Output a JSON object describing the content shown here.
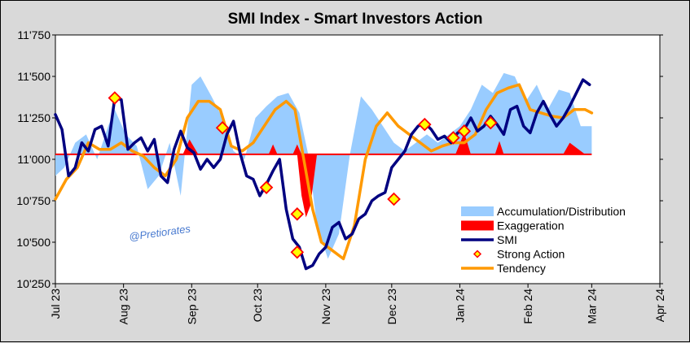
{
  "chart_data": {
    "type": "line",
    "title": "SMI Index - Smart Investors Action",
    "watermark": "@Pretiorates",
    "xlabel": "",
    "ylabel": "",
    "ylim": [
      10250,
      11750
    ],
    "y_ticks": [
      10250,
      10500,
      10750,
      11000,
      11250,
      11500,
      11750
    ],
    "y_tick_labels": [
      "10'250",
      "10'500",
      "10'750",
      "11'000",
      "11'250",
      "11'500",
      "11'750"
    ],
    "xlim": [
      "2023-07-01",
      "2024-04-01"
    ],
    "x_ticks": [
      "2023-07-01",
      "2023-08-01",
      "2023-09-01",
      "2023-10-01",
      "2023-11-01",
      "2023-12-01",
      "2024-01-01",
      "2024-02-01",
      "2024-03-01",
      "2024-04-01"
    ],
    "x_tick_labels": [
      "Jul 23",
      "Aug 23",
      "Sep 23",
      "Oct 23",
      "Nov 23",
      "Dec 23",
      "Jan 24",
      "Feb 24",
      "Mar 24",
      "Apr 24"
    ],
    "baseline": 11030,
    "legend_position": "bottom-right",
    "grid": false,
    "colors": {
      "accumulation": "#99ccff",
      "exaggeration": "#ff0000",
      "smi": "#000080",
      "strong_action_fill": "#ffff00",
      "strong_action_edge": "#ff0000",
      "tendency": "#ff9900",
      "baseline": "#ff0000",
      "plot_bg": "#ffffff",
      "page_bg": "#d9d9d9"
    },
    "series": [
      {
        "name": "Accumulation/Distribution",
        "kind": "area",
        "x": [
          "2023-07-01",
          "2023-07-05",
          "2023-07-10",
          "2023-07-15",
          "2023-07-20",
          "2023-07-25",
          "2023-07-28",
          "2023-08-02",
          "2023-08-07",
          "2023-08-12",
          "2023-08-17",
          "2023-08-22",
          "2023-08-27",
          "2023-09-01",
          "2023-09-05",
          "2023-09-10",
          "2023-09-15",
          "2023-09-20",
          "2023-09-25",
          "2023-09-30",
          "2023-10-05",
          "2023-10-10",
          "2023-10-15",
          "2023-10-20",
          "2023-10-24",
          "2023-10-28",
          "2023-11-02",
          "2023-11-07",
          "2023-11-12",
          "2023-11-17",
          "2023-11-22",
          "2023-11-27",
          "2023-12-02",
          "2023-12-07",
          "2023-12-12",
          "2023-12-17",
          "2023-12-22",
          "2023-12-27",
          "2024-01-01",
          "2024-01-06",
          "2024-01-11",
          "2024-01-16",
          "2024-01-21",
          "2024-01-26",
          "2024-01-31",
          "2024-02-05",
          "2024-02-10",
          "2024-02-15",
          "2024-02-20",
          "2024-02-25",
          "2024-03-01"
        ],
        "values": [
          10900,
          10950,
          11100,
          11150,
          11000,
          11200,
          11300,
          11150,
          11080,
          10820,
          10900,
          11100,
          10780,
          11450,
          11500,
          11380,
          11250,
          11050,
          11000,
          11250,
          11320,
          11380,
          11400,
          11280,
          11030,
          10600,
          10400,
          10550,
          11030,
          11380,
          11300,
          11200,
          11100,
          11050,
          11100,
          11150,
          11100,
          11150,
          11200,
          11300,
          11450,
          11400,
          11520,
          11500,
          11350,
          11450,
          11300,
          11420,
          11400,
          11200,
          11200
        ]
      },
      {
        "name": "Exaggeration",
        "kind": "area",
        "segments": [
          {
            "x": [
              "2023-08-28",
              "2023-08-31",
              "2023-09-04"
            ],
            "values": [
              11030,
              11120,
              11030
            ]
          },
          {
            "x": [
              "2023-10-06",
              "2023-10-08",
              "2023-10-10"
            ],
            "values": [
              11030,
              11090,
              11030
            ]
          },
          {
            "x": [
              "2023-10-17",
              "2023-10-19",
              "2023-10-21"
            ],
            "values": [
              11030,
              11090,
              11030
            ]
          },
          {
            "x": [
              "2023-10-19",
              "2023-10-21",
              "2023-10-23",
              "2023-10-25",
              "2023-10-28"
            ],
            "values": [
              11030,
              10780,
              10650,
              10720,
              11030
            ]
          },
          {
            "x": [
              "2023-12-30",
              "2024-01-03",
              "2024-01-06"
            ],
            "values": [
              11030,
              11160,
              11030
            ]
          },
          {
            "x": [
              "2024-01-17",
              "2024-01-19",
              "2024-01-21"
            ],
            "values": [
              11030,
              11110,
              11030
            ]
          },
          {
            "x": [
              "2024-02-17",
              "2024-02-20",
              "2024-02-27"
            ],
            "values": [
              11030,
              11100,
              11030
            ]
          }
        ]
      },
      {
        "name": "SMI",
        "kind": "line",
        "x": [
          "2023-07-01",
          "2023-07-04",
          "2023-07-07",
          "2023-07-10",
          "2023-07-13",
          "2023-07-16",
          "2023-07-19",
          "2023-07-22",
          "2023-07-25",
          "2023-07-28",
          "2023-07-31",
          "2023-08-03",
          "2023-08-06",
          "2023-08-09",
          "2023-08-12",
          "2023-08-15",
          "2023-08-18",
          "2023-08-21",
          "2023-08-24",
          "2023-08-27",
          "2023-08-30",
          "2023-09-02",
          "2023-09-05",
          "2023-09-08",
          "2023-09-11",
          "2023-09-14",
          "2023-09-17",
          "2023-09-20",
          "2023-09-23",
          "2023-09-26",
          "2023-09-29",
          "2023-10-02",
          "2023-10-05",
          "2023-10-08",
          "2023-10-11",
          "2023-10-14",
          "2023-10-17",
          "2023-10-20",
          "2023-10-23",
          "2023-10-26",
          "2023-10-29",
          "2023-11-01",
          "2023-11-04",
          "2023-11-07",
          "2023-11-10",
          "2023-11-13",
          "2023-11-16",
          "2023-11-19",
          "2023-11-22",
          "2023-11-25",
          "2023-11-28",
          "2023-12-01",
          "2023-12-04",
          "2023-12-07",
          "2023-12-10",
          "2023-12-13",
          "2023-12-16",
          "2023-12-19",
          "2023-12-22",
          "2023-12-25",
          "2023-12-28",
          "2023-12-31",
          "2024-01-03",
          "2024-01-06",
          "2024-01-09",
          "2024-01-12",
          "2024-01-15",
          "2024-01-18",
          "2024-01-21",
          "2024-01-24",
          "2024-01-27",
          "2024-01-30",
          "2024-02-02",
          "2024-02-05",
          "2024-02-08",
          "2024-02-11",
          "2024-02-14",
          "2024-02-17",
          "2024-02-20",
          "2024-02-23",
          "2024-02-26",
          "2024-02-29"
        ],
        "values": [
          11270,
          11180,
          10900,
          10950,
          11100,
          11050,
          11180,
          11200,
          11080,
          11370,
          11360,
          11060,
          11100,
          11130,
          11050,
          11120,
          10900,
          10860,
          11060,
          11170,
          11070,
          11040,
          10940,
          11000,
          10950,
          11000,
          11150,
          11230,
          11040,
          10900,
          10880,
          10780,
          10850,
          10930,
          11000,
          10700,
          10520,
          10470,
          10340,
          10360,
          10430,
          10470,
          10590,
          10620,
          10520,
          10550,
          10640,
          10670,
          10750,
          10780,
          10800,
          10950,
          11000,
          11050,
          11150,
          11200,
          11220,
          11180,
          11120,
          11140,
          11100,
          11160,
          11180,
          11250,
          11170,
          11200,
          11260,
          11210,
          11150,
          11300,
          11320,
          11200,
          11160,
          11280,
          11350,
          11270,
          11200,
          11250,
          11320,
          11400,
          11480,
          11450
        ]
      },
      {
        "name": "Strong Action",
        "kind": "scatter",
        "x": [
          "2023-07-28",
          "2023-09-15",
          "2023-10-05",
          "2023-10-19",
          "2023-10-19",
          "2023-12-02",
          "2023-12-16",
          "2023-12-29",
          "2024-01-03",
          "2024-01-15"
        ],
        "values": [
          11370,
          11190,
          10830,
          10670,
          10440,
          10760,
          11210,
          11130,
          11170,
          11220
        ]
      },
      {
        "name": "Tendency",
        "kind": "line",
        "x": [
          "2023-07-01",
          "2023-07-06",
          "2023-07-11",
          "2023-07-16",
          "2023-07-21",
          "2023-07-26",
          "2023-07-31",
          "2023-08-05",
          "2023-08-10",
          "2023-08-15",
          "2023-08-20",
          "2023-08-25",
          "2023-08-30",
          "2023-09-04",
          "2023-09-09",
          "2023-09-14",
          "2023-09-19",
          "2023-09-24",
          "2023-09-29",
          "2023-10-04",
          "2023-10-09",
          "2023-10-14",
          "2023-10-18",
          "2023-10-22",
          "2023-10-26",
          "2023-10-30",
          "2023-11-04",
          "2023-11-09",
          "2023-11-14",
          "2023-11-19",
          "2023-11-24",
          "2023-11-29",
          "2023-12-04",
          "2023-12-09",
          "2023-12-14",
          "2023-12-19",
          "2023-12-24",
          "2023-12-29",
          "2024-01-03",
          "2024-01-08",
          "2024-01-13",
          "2024-01-18",
          "2024-01-23",
          "2024-01-28",
          "2024-02-02",
          "2024-02-07",
          "2024-02-12",
          "2024-02-17",
          "2024-02-22",
          "2024-02-27",
          "2024-03-01"
        ],
        "values": [
          10760,
          10880,
          10950,
          11100,
          11060,
          11060,
          11100,
          11050,
          11020,
          10950,
          10900,
          11000,
          11250,
          11350,
          11350,
          11300,
          11080,
          11050,
          11100,
          11200,
          11300,
          11350,
          11300,
          11000,
          10700,
          10500,
          10450,
          10400,
          10600,
          11000,
          11200,
          11280,
          11200,
          11150,
          11100,
          11050,
          11080,
          11100,
          11100,
          11150,
          11300,
          11400,
          11430,
          11450,
          11300,
          11280,
          11260,
          11250,
          11300,
          11300,
          11280
        ]
      }
    ]
  }
}
